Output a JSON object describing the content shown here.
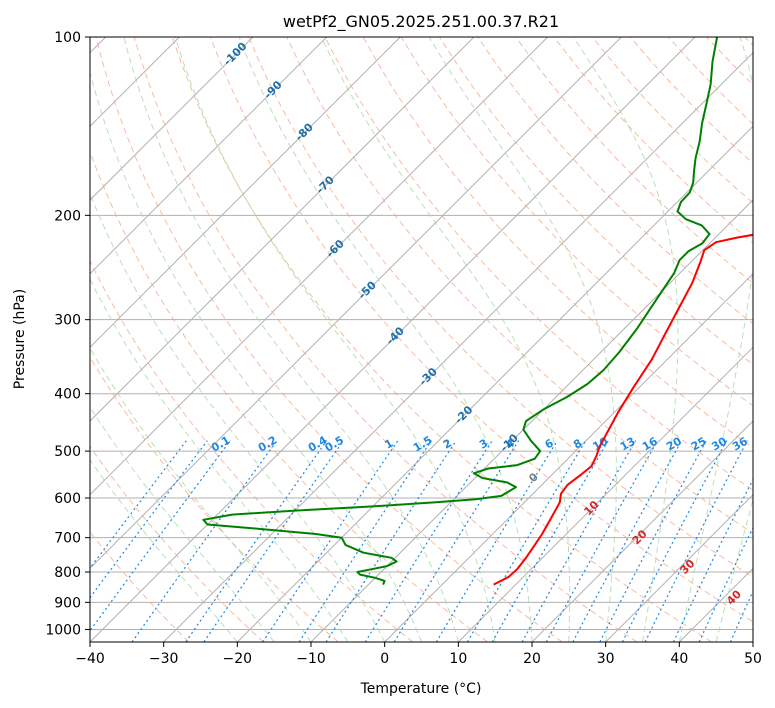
{
  "chart_data": {
    "type": "line",
    "title": "wetPf2_GN05.2025.251.00.37.R21",
    "xlabel": "Temperature (°C)",
    "ylabel": "Pressure (hPa)",
    "xlim": [
      -40,
      50
    ],
    "ylim": [
      1050,
      100
    ],
    "y_scale": "log",
    "x_ticks": [
      "−40",
      "−30",
      "−20",
      "−10",
      "0",
      "10",
      "20",
      "30",
      "40",
      "50"
    ],
    "y_ticks": [
      "100",
      "200",
      "300",
      "400",
      "500",
      "600",
      "700",
      "800",
      "900",
      "1000"
    ],
    "grid": true,
    "series": [
      {
        "color": "#ff0000",
        "x_unit": "temperature_c",
        "points": [
          [
            7.0,
            840
          ],
          [
            8.0,
            815
          ],
          [
            8.1,
            790
          ],
          [
            7.8,
            760
          ],
          [
            7.2,
            720
          ],
          [
            6.7,
            690
          ],
          [
            5.8,
            650
          ],
          [
            4.8,
            610
          ],
          [
            3.8,
            590
          ],
          [
            3.5,
            570
          ],
          [
            3.9,
            550
          ],
          [
            4.2,
            530
          ],
          [
            3.5,
            510
          ],
          [
            2.6,
            490
          ],
          [
            1.6,
            460
          ],
          [
            0.5,
            430
          ],
          [
            -0.8,
            390
          ],
          [
            -2.1,
            350
          ],
          [
            -3.6,
            320
          ],
          [
            -5.2,
            290
          ],
          [
            -7.0,
            260
          ],
          [
            -8.7,
            240
          ],
          [
            -9.8,
            229
          ],
          [
            -9.3,
            222
          ],
          [
            -7.0,
            218
          ],
          [
            -4.0,
            214
          ],
          [
            -1.0,
            210
          ],
          [
            2.5,
            205
          ],
          [
            5.5,
            200
          ],
          [
            8.0,
            195
          ],
          [
            10.5,
            185
          ],
          [
            11.6,
            170
          ],
          [
            12.4,
            150
          ],
          [
            14.2,
            130
          ],
          [
            18.0,
            110
          ],
          [
            20.5,
            100
          ]
        ]
      },
      {
        "color": "#008000",
        "x_unit": "temperature_c",
        "points": [
          [
            -8.0,
            840
          ],
          [
            -8.3,
            828
          ],
          [
            -10.0,
            818
          ],
          [
            -12.5,
            808
          ],
          [
            -13.2,
            800
          ],
          [
            -12.0,
            793
          ],
          [
            -10.0,
            782
          ],
          [
            -9.3,
            768
          ],
          [
            -10.5,
            757
          ],
          [
            -15.0,
            742
          ],
          [
            -18.5,
            720
          ],
          [
            -20.0,
            700
          ],
          [
            -24.0,
            690
          ],
          [
            -32.0,
            677
          ],
          [
            -40.0,
            665
          ],
          [
            -41.2,
            653
          ],
          [
            -38.0,
            640
          ],
          [
            -30.0,
            630
          ],
          [
            -20.0,
            620
          ],
          [
            -12.0,
            610
          ],
          [
            -7.0,
            603
          ],
          [
            -4.0,
            595
          ],
          [
            -3.2,
            575
          ],
          [
            -5.0,
            565
          ],
          [
            -9.0,
            555
          ],
          [
            -10.8,
            545
          ],
          [
            -9.5,
            535
          ],
          [
            -6.0,
            528
          ],
          [
            -4.5,
            515
          ],
          [
            -4.8,
            500
          ],
          [
            -7.5,
            480
          ],
          [
            -10.0,
            460
          ],
          [
            -10.8,
            445
          ],
          [
            -10.0,
            425
          ],
          [
            -8.5,
            405
          ],
          [
            -7.5,
            385
          ],
          [
            -7.2,
            365
          ],
          [
            -7.5,
            340
          ],
          [
            -8.3,
            310
          ],
          [
            -9.5,
            280
          ],
          [
            -10.8,
            250
          ],
          [
            -11.8,
            238
          ],
          [
            -11.8,
            230
          ],
          [
            -11.0,
            223
          ],
          [
            -11.3,
            215
          ],
          [
            -13.5,
            208
          ],
          [
            -16.5,
            203
          ],
          [
            -18.7,
            197
          ],
          [
            -19.5,
            190
          ],
          [
            -19.6,
            183
          ],
          [
            -20.5,
            176
          ],
          [
            -22.0,
            168
          ],
          [
            -23.5,
            160
          ],
          [
            -25.2,
            150
          ],
          [
            -27.3,
            140
          ],
          [
            -29.3,
            130
          ],
          [
            -31.5,
            120
          ],
          [
            -34.3,
            110
          ],
          [
            -37.0,
            100
          ]
        ]
      }
    ],
    "isotherm_labels": [
      "-100",
      "-90",
      "-80",
      "-70",
      "-60",
      "-50",
      "-40",
      "-30",
      "-20",
      "-10"
    ],
    "mixing_ratio_labels": [
      "0.1",
      "0.2",
      "0.4",
      "0.5",
      "1",
      "1.5",
      "2",
      "3",
      "4",
      "6",
      "8",
      "10",
      "13",
      "16",
      "20",
      "25",
      "30",
      "36"
    ],
    "red_labels": [
      "0",
      "10",
      "20",
      "30",
      "40"
    ],
    "colors": {
      "temperature": "#ff0000",
      "dewpoint": "#008000",
      "isotherm_label": "#1f6fa8",
      "mixing_ratio": "#1e88e5",
      "red_label": "#d62728",
      "dry_adiabat": "#f4a582",
      "moist_adiabat": "#a6d8a6",
      "grid": "#b0b0b0"
    }
  }
}
